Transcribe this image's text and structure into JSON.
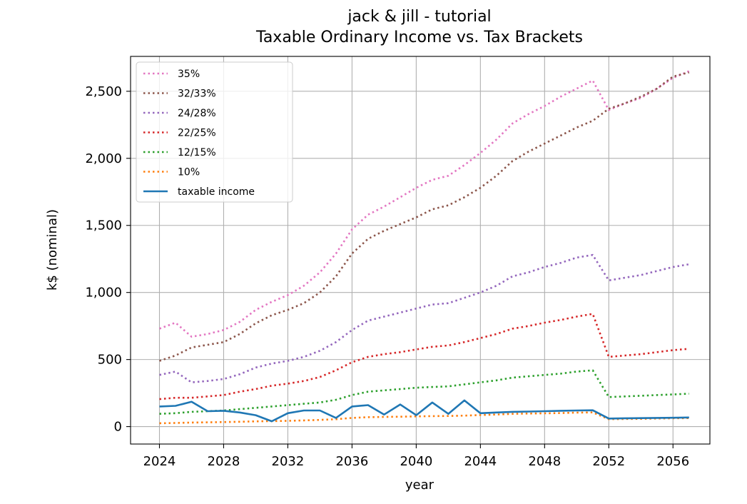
{
  "chart_data": {
    "type": "line",
    "title": "jack & jill - tutorial",
    "subtitle": "Taxable Ordinary Income vs. Tax Brackets",
    "xlabel": "year",
    "ylabel": "k$ (nominal)",
    "xlim": [
      2022.2,
      2058.3
    ],
    "ylim": [
      -130,
      2760
    ],
    "xticks": [
      2024,
      2028,
      2032,
      2036,
      2040,
      2044,
      2048,
      2052,
      2056
    ],
    "yticks": [
      0,
      500,
      1000,
      1500,
      2000,
      2500
    ],
    "ytick_labels": [
      "0",
      "500",
      "1,000",
      "1,500",
      "2,000",
      "2,500"
    ],
    "grid": true,
    "legend_position": "upper-left",
    "x": [
      2024,
      2025,
      2026,
      2027,
      2028,
      2029,
      2030,
      2031,
      2032,
      2033,
      2034,
      2035,
      2036,
      2037,
      2038,
      2039,
      2040,
      2041,
      2042,
      2043,
      2044,
      2045,
      2046,
      2047,
      2048,
      2049,
      2050,
      2051,
      2052,
      2053,
      2054,
      2055,
      2056,
      2057
    ],
    "series": [
      {
        "name": "35%",
        "color": "#e377c2",
        "style": "dotted",
        "values": [
          730,
          775,
          670,
          690,
          720,
          780,
          870,
          930,
          980,
          1050,
          1150,
          1290,
          1470,
          1580,
          1640,
          1710,
          1780,
          1840,
          1870,
          1950,
          2040,
          2140,
          2260,
          2330,
          2390,
          2460,
          2520,
          2580,
          2360,
          2410,
          2450,
          2520,
          2600,
          2650
        ]
      },
      {
        "name": "32/33%",
        "color": "#8c564b",
        "style": "dotted",
        "values": [
          490,
          530,
          590,
          610,
          630,
          690,
          770,
          830,
          870,
          920,
          1000,
          1120,
          1290,
          1400,
          1460,
          1510,
          1560,
          1620,
          1650,
          1710,
          1780,
          1870,
          1980,
          2050,
          2110,
          2170,
          2230,
          2280,
          2370,
          2410,
          2460,
          2520,
          2610,
          2640
        ]
      },
      {
        "name": "24/28%",
        "color": "#9467bd",
        "style": "dotted",
        "values": [
          385,
          410,
          330,
          340,
          355,
          390,
          440,
          470,
          490,
          520,
          565,
          630,
          720,
          790,
          820,
          850,
          880,
          910,
          920,
          960,
          1000,
          1050,
          1120,
          1150,
          1190,
          1220,
          1260,
          1280,
          1090,
          1110,
          1130,
          1160,
          1190,
          1210
        ]
      },
      {
        "name": "22/25%",
        "color": "#d62728",
        "style": "dotted",
        "values": [
          205,
          215,
          215,
          225,
          235,
          260,
          280,
          305,
          320,
          340,
          370,
          420,
          480,
          520,
          540,
          555,
          575,
          595,
          605,
          630,
          660,
          690,
          730,
          750,
          775,
          795,
          820,
          840,
          520,
          530,
          540,
          555,
          570,
          580
        ]
      },
      {
        "name": "12/15%",
        "color": "#2ca02c",
        "style": "dotted",
        "values": [
          95,
          100,
          110,
          115,
          120,
          130,
          140,
          150,
          160,
          170,
          180,
          200,
          235,
          260,
          270,
          280,
          290,
          295,
          300,
          315,
          330,
          345,
          365,
          375,
          385,
          395,
          410,
          420,
          220,
          225,
          230,
          235,
          240,
          245
        ]
      },
      {
        "name": "10%",
        "color": "#ff7f0e",
        "style": "dotted",
        "values": [
          25,
          27,
          30,
          32,
          34,
          36,
          39,
          41,
          43,
          46,
          50,
          55,
          65,
          70,
          72,
          74,
          76,
          78,
          79,
          82,
          86,
          90,
          95,
          97,
          99,
          101,
          104,
          106,
          55,
          57,
          58,
          60,
          62,
          63
        ]
      },
      {
        "name": "taxable income",
        "color": "#1f77b4",
        "style": "solid",
        "values": [
          150,
          155,
          185,
          115,
          118,
          105,
          85,
          40,
          100,
          120,
          120,
          65,
          150,
          160,
          90,
          165,
          85,
          180,
          95,
          195,
          100,
          105,
          110,
          112,
          115,
          118,
          120,
          122,
          60,
          62,
          63,
          65,
          66,
          68
        ]
      }
    ]
  }
}
